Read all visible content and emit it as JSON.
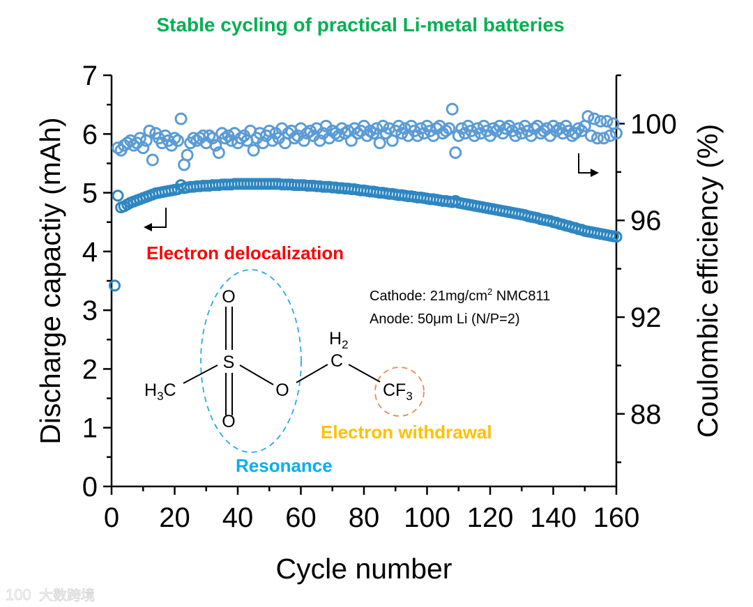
{
  "chart_data": {
    "type": "scatter",
    "title": "Stable cycling of practical Li-metal batteries",
    "xlabel": "Cycle number",
    "ylabel": "Discharge capactiy (mAh)",
    "y2label": "Coulombic efficiency (%)",
    "xlim": [
      0,
      160
    ],
    "ylim": [
      0,
      7
    ],
    "y2lim": [
      85,
      102
    ],
    "xticks": [
      "0",
      "20",
      "40",
      "60",
      "80",
      "100",
      "120",
      "140",
      "160"
    ],
    "yticks": [
      "0",
      "1",
      "2",
      "3",
      "4",
      "5",
      "6",
      "7"
    ],
    "y2ticks": [
      "88",
      "92",
      "96",
      "100"
    ],
    "colors": {
      "title": "#00b050",
      "capacity": "#2e86c1",
      "ce": "#5b9bd5",
      "delocalization": "#ff0000",
      "withdrawal": "#ffc000",
      "resonance": "#00b0f0",
      "circle_orange": "#e8894a"
    },
    "series": [
      {
        "name": "Discharge capacity",
        "axis": "left",
        "x_start": 1,
        "values": [
          3.42,
          4.95,
          4.75,
          4.77,
          4.8,
          4.83,
          4.85,
          4.87,
          4.89,
          4.91,
          4.93,
          4.95,
          4.97,
          4.99,
          5.0,
          5.01,
          5.02,
          5.03,
          5.04,
          5.05,
          5.06,
          5.13,
          5.08,
          5.09,
          5.1,
          5.1,
          5.11,
          5.11,
          5.12,
          5.12,
          5.12,
          5.13,
          5.13,
          5.13,
          5.14,
          5.14,
          5.14,
          5.14,
          5.15,
          5.15,
          5.15,
          5.15,
          5.15,
          5.15,
          5.15,
          5.15,
          5.15,
          5.15,
          5.15,
          5.15,
          5.15,
          5.15,
          5.15,
          5.14,
          5.14,
          5.14,
          5.14,
          5.13,
          5.13,
          5.13,
          5.13,
          5.12,
          5.12,
          5.12,
          5.11,
          5.11,
          5.1,
          5.1,
          5.1,
          5.09,
          5.09,
          5.08,
          5.08,
          5.07,
          5.07,
          5.06,
          5.06,
          5.05,
          5.04,
          5.04,
          5.03,
          5.02,
          5.02,
          5.01,
          5.0,
          5.0,
          4.99,
          4.98,
          4.98,
          4.97,
          4.96,
          4.96,
          4.95,
          4.94,
          4.94,
          4.93,
          4.92,
          4.92,
          4.91,
          4.9,
          4.89,
          4.89,
          4.88,
          4.87,
          4.86,
          4.86,
          4.85,
          4.84,
          4.86,
          4.83,
          4.82,
          4.81,
          4.8,
          4.79,
          4.78,
          4.77,
          4.76,
          4.75,
          4.74,
          4.73,
          4.72,
          4.71,
          4.7,
          4.69,
          4.68,
          4.67,
          4.66,
          4.65,
          4.64,
          4.63,
          4.62,
          4.6,
          4.59,
          4.58,
          4.57,
          4.55,
          4.54,
          4.53,
          4.52,
          4.5,
          4.49,
          4.47,
          4.46,
          4.44,
          4.43,
          4.41,
          4.4,
          4.38,
          4.37,
          4.35,
          4.34,
          4.33,
          4.32,
          4.31,
          4.3,
          4.29,
          4.28,
          4.27,
          4.26,
          4.25
        ]
      },
      {
        "name": "Coulombic efficiency",
        "axis": "right",
        "x_start": 2,
        "values": [
          99.0,
          98.9,
          99.1,
          99.2,
          99.3,
          99.1,
          99.2,
          99.4,
          99.0,
          99.3,
          99.7,
          98.5,
          99.6,
          99.4,
          99.2,
          99.5,
          99.3,
          99.1,
          99.4,
          99.3,
          100.2,
          98.3,
          98.7,
          99.2,
          99.4,
          99.3,
          99.4,
          99.5,
          99.2,
          99.5,
          99.4,
          99.1,
          98.8,
          99.6,
          99.4,
          99.5,
          99.3,
          99.6,
          99.2,
          99.4,
          99.5,
          99.3,
          99.7,
          98.9,
          99.4,
          99.6,
          99.2,
          99.5,
          99.7,
          99.3,
          99.6,
          99.4,
          99.8,
          99.2,
          99.6,
          99.7,
          99.4,
          99.5,
          99.8,
          99.3,
          99.6,
          99.7,
          99.5,
          99.8,
          99.3,
          99.6,
          99.9,
          99.4,
          99.7,
          99.6,
          99.5,
          99.8,
          99.6,
          99.7,
          99.3,
          99.8,
          99.6,
          99.7,
          99.9,
          99.5,
          99.7,
          99.6,
          99.8,
          99.2,
          99.9,
          99.6,
          99.8,
          99.3,
          99.7,
          99.9,
          99.6,
          99.8,
          99.5,
          99.9,
          99.7,
          99.5,
          99.8,
          99.6,
          99.9,
          99.7,
          99.5,
          99.8,
          99.9,
          99.6,
          99.7,
          99.8,
          100.6,
          98.8,
          99.5,
          99.8,
          99.6,
          99.9,
          99.7,
          99.5,
          99.8,
          99.6,
          99.9,
          99.7,
          99.5,
          99.8,
          99.7,
          99.9,
          99.6,
          99.8,
          99.9,
          99.7,
          99.5,
          99.8,
          99.6,
          99.9,
          99.7,
          99.5,
          99.8,
          99.9,
          99.6,
          99.7,
          99.8,
          99.5,
          99.9,
          99.7,
          99.8,
          99.6,
          99.9,
          99.7,
          99.5,
          99.6,
          99.8,
          99.7,
          99.9,
          100.3,
          99.5,
          100.2,
          99.4,
          100.1,
          99.4,
          100.1,
          99.5,
          100.0,
          99.6
        ]
      }
    ],
    "annotations": {
      "delocalization": "Electron delocalization",
      "withdrawal": "Electron withdrawal",
      "resonance": "Resonance",
      "cathode_prefix": "Cathode: 21mg/cm",
      "cathode_sup": "2",
      "cathode_suffix": " NMC811",
      "anode": "Anode: 50μm Li (N/P=2)"
    },
    "molecule": {
      "h3c_h": "H",
      "h3c_3": "3",
      "h3c_c": "C",
      "s": "S",
      "o_top": "O",
      "o_bottom": "O",
      "o_ester": "O",
      "ch2_h": "H",
      "ch2_2": "2",
      "ch2_c": "C",
      "cf3_cf": "CF",
      "cf3_3": "3"
    }
  },
  "watermark": {
    "logo": "100",
    "text": "大数跨境"
  }
}
